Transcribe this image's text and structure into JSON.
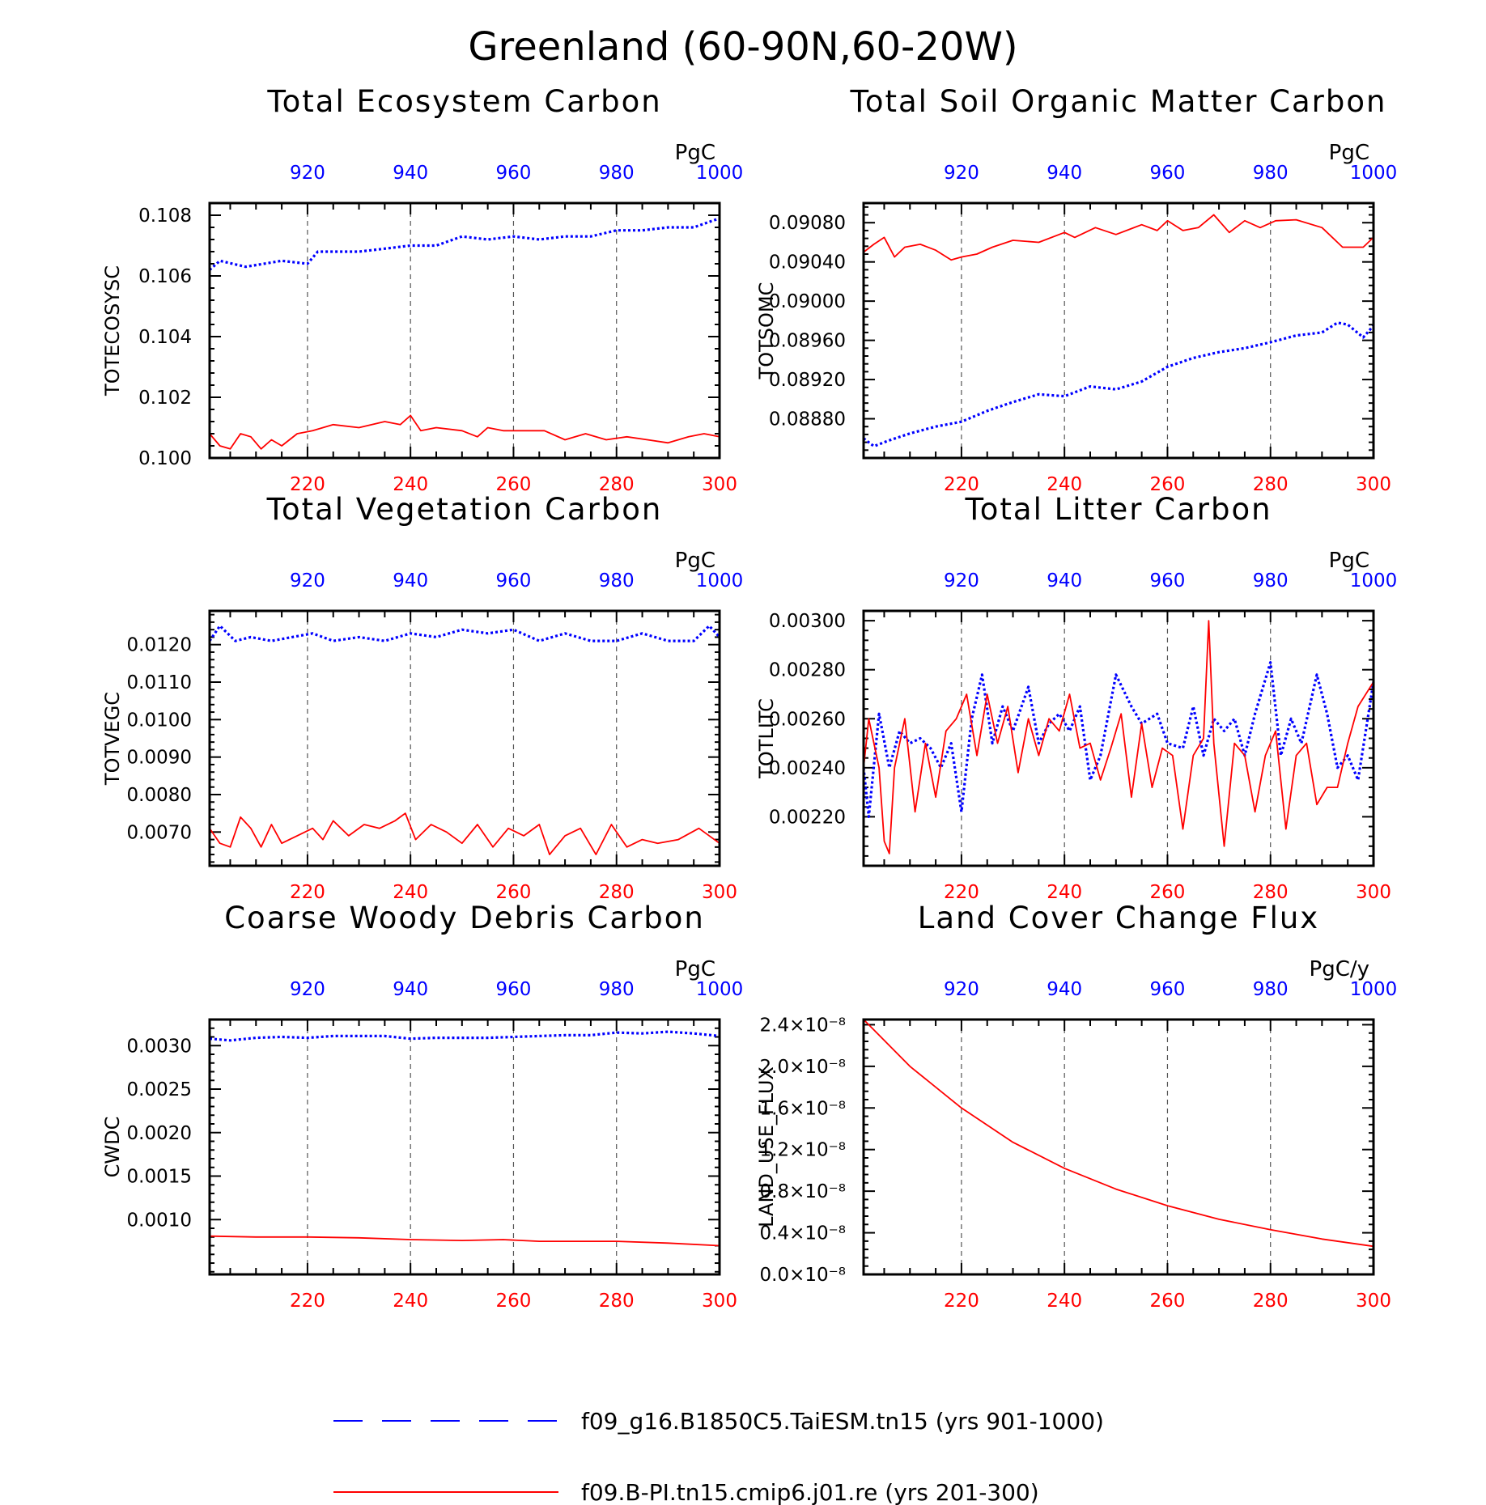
{
  "figure": {
    "title": "Greenland (60-90N,60-20W)"
  },
  "colors": {
    "series_a": "#0000ff",
    "series_b": "#ff0000",
    "axis": "#000000",
    "grid": "#555555"
  },
  "legend": [
    {
      "label": "f09_g16.B1850C5.TaiESM.tn15 (yrs 901-1000)",
      "color": "#0000ff",
      "style": "dashed"
    },
    {
      "label": "f09.B-PI.tn15.cmip6.j01.re (yrs 201-300)",
      "color": "#ff0000",
      "style": "solid"
    }
  ],
  "chart_data": [
    {
      "type": "line",
      "title": "Total Ecosystem Carbon",
      "ylabel": "TOTECOSYSC",
      "unit": "PgC",
      "ylim": [
        0.1,
        0.1084
      ],
      "yticks": [
        "0.100",
        "0.102",
        "0.104",
        "0.106",
        "0.108"
      ],
      "yticks_values": [
        0.1,
        0.102,
        0.104,
        0.106,
        0.108
      ],
      "bottom_axis": {
        "range": [
          201,
          300
        ],
        "ticks": [
          "220",
          "240",
          "260",
          "280",
          "300"
        ],
        "color": "#ff0000"
      },
      "top_axis": {
        "range": [
          901,
          1000
        ],
        "ticks": [
          "920",
          "940",
          "960",
          "980",
          "1000"
        ],
        "color": "#0000ff"
      },
      "series": [
        {
          "name": "f09_g16.B1850C5.TaiESM.tn15 (yrs 901-1000)",
          "style": "dashed",
          "color": "#0000ff",
          "x": [
            901,
            903,
            908,
            915,
            920,
            922,
            926,
            930,
            935,
            940,
            945,
            950,
            955,
            960,
            965,
            970,
            975,
            980,
            985,
            990,
            995,
            1000
          ],
          "y": [
            0.1062,
            0.1065,
            0.1063,
            0.1065,
            0.1064,
            0.1068,
            0.1068,
            0.1068,
            0.1069,
            0.107,
            0.107,
            0.1073,
            0.1072,
            0.1073,
            0.1072,
            0.1073,
            0.1073,
            0.1075,
            0.1075,
            0.1076,
            0.1076,
            0.1079
          ]
        },
        {
          "name": "f09.B-PI.tn15.cmip6.j01.re (yrs 201-300)",
          "style": "solid",
          "color": "#ff0000",
          "x": [
            201,
            203,
            205,
            207,
            209,
            211,
            213,
            215,
            218,
            221,
            225,
            230,
            235,
            238,
            240,
            242,
            245,
            250,
            253,
            255,
            258,
            262,
            266,
            270,
            274,
            278,
            282,
            286,
            290,
            294,
            297,
            300
          ],
          "y": [
            0.1008,
            0.1004,
            0.1003,
            0.1008,
            0.1007,
            0.1003,
            0.1006,
            0.1004,
            0.1008,
            0.1009,
            0.1011,
            0.101,
            0.1012,
            0.1011,
            0.1014,
            0.1009,
            0.101,
            0.1009,
            0.1007,
            0.101,
            0.1009,
            0.1009,
            0.1009,
            0.1006,
            0.1008,
            0.1006,
            0.1007,
            0.1006,
            0.1005,
            0.1007,
            0.1008,
            0.1007
          ]
        }
      ]
    },
    {
      "type": "line",
      "title": "Total Soil Organic Matter Carbon",
      "ylabel": "TOTSOMC",
      "unit": "PgC",
      "ylim": [
        0.0884,
        0.091
      ],
      "yticks": [
        "0.08880",
        "0.08920",
        "0.08960",
        "0.09000",
        "0.09040",
        "0.09080"
      ],
      "yticks_values": [
        0.0888,
        0.0892,
        0.0896,
        0.09,
        0.0904,
        0.0908
      ],
      "bottom_axis": {
        "range": [
          201,
          300
        ],
        "ticks": [
          "220",
          "240",
          "260",
          "280",
          "300"
        ],
        "color": "#ff0000"
      },
      "top_axis": {
        "range": [
          901,
          1000
        ],
        "ticks": [
          "920",
          "940",
          "960",
          "980",
          "1000"
        ],
        "color": "#0000ff"
      },
      "series": [
        {
          "name": "f09_g16.B1850C5.TaiESM.tn15 (yrs 901-1000)",
          "style": "dashed",
          "color": "#0000ff",
          "x": [
            901,
            903,
            906,
            910,
            915,
            920,
            925,
            930,
            935,
            940,
            945,
            950,
            955,
            960,
            965,
            970,
            975,
            980,
            985,
            990,
            993,
            995,
            998,
            1000
          ],
          "y": [
            0.0886,
            0.08852,
            0.08858,
            0.08865,
            0.08872,
            0.08877,
            0.08888,
            0.08897,
            0.08905,
            0.08903,
            0.08913,
            0.0891,
            0.08918,
            0.08933,
            0.08942,
            0.08948,
            0.08952,
            0.08958,
            0.08965,
            0.08968,
            0.08978,
            0.08976,
            0.08963,
            0.08975
          ]
        },
        {
          "name": "f09.B-PI.tn15.cmip6.j01.re (yrs 201-300)",
          "style": "solid",
          "color": "#ff0000",
          "x": [
            201,
            203,
            205,
            207,
            209,
            212,
            215,
            218,
            220,
            223,
            226,
            230,
            235,
            240,
            242,
            246,
            250,
            255,
            258,
            260,
            263,
            266,
            269,
            272,
            275,
            278,
            281,
            285,
            290,
            294,
            298,
            300
          ],
          "y": [
            0.0905,
            0.09058,
            0.09065,
            0.09045,
            0.09055,
            0.09058,
            0.09052,
            0.09042,
            0.09045,
            0.09048,
            0.09055,
            0.09062,
            0.0906,
            0.0907,
            0.09065,
            0.09075,
            0.09068,
            0.09078,
            0.09072,
            0.09082,
            0.09072,
            0.09075,
            0.09088,
            0.0907,
            0.09082,
            0.09075,
            0.09082,
            0.09083,
            0.09075,
            0.09055,
            0.09055,
            0.09065
          ]
        }
      ]
    },
    {
      "type": "line",
      "title": "Total Vegetation Carbon",
      "ylabel": "TOTVEGC",
      "unit": "PgC",
      "ylim": [
        0.0061,
        0.0129
      ],
      "yticks": [
        "0.0070",
        "0.0080",
        "0.0090",
        "0.0100",
        "0.0110",
        "0.0120"
      ],
      "yticks_values": [
        0.007,
        0.008,
        0.009,
        0.01,
        0.011,
        0.012
      ],
      "bottom_axis": {
        "range": [
          201,
          300
        ],
        "ticks": [
          "220",
          "240",
          "260",
          "280",
          "300"
        ],
        "color": "#ff0000"
      },
      "top_axis": {
        "range": [
          901,
          1000
        ],
        "ticks": [
          "920",
          "940",
          "960",
          "980",
          "1000"
        ],
        "color": "#0000ff"
      },
      "series": [
        {
          "name": "f09_g16.B1850C5.TaiESM.tn15 (yrs 901-1000)",
          "style": "dashed",
          "color": "#0000ff",
          "x": [
            901,
            903,
            906,
            909,
            913,
            917,
            921,
            925,
            930,
            935,
            940,
            945,
            950,
            955,
            960,
            965,
            970,
            975,
            980,
            985,
            990,
            995,
            998,
            1000
          ],
          "y": [
            0.0121,
            0.0125,
            0.0121,
            0.0122,
            0.0121,
            0.0122,
            0.0123,
            0.0121,
            0.0122,
            0.0121,
            0.0123,
            0.0122,
            0.0124,
            0.0123,
            0.0124,
            0.0121,
            0.0123,
            0.0121,
            0.0121,
            0.0123,
            0.0121,
            0.0121,
            0.0125,
            0.0122
          ]
        },
        {
          "name": "f09.B-PI.tn15.cmip6.j01.re (yrs 201-300)",
          "style": "solid",
          "color": "#ff0000",
          "x": [
            201,
            203,
            205,
            207,
            209,
            211,
            213,
            215,
            218,
            221,
            223,
            225,
            228,
            231,
            234,
            237,
            239,
            241,
            244,
            247,
            250,
            253,
            256,
            259,
            262,
            265,
            267,
            270,
            273,
            276,
            279,
            282,
            285,
            288,
            292,
            296,
            300
          ],
          "y": [
            0.0071,
            0.0067,
            0.0066,
            0.0074,
            0.0071,
            0.0066,
            0.0072,
            0.0067,
            0.0069,
            0.0071,
            0.0068,
            0.0073,
            0.0069,
            0.0072,
            0.0071,
            0.0073,
            0.0075,
            0.0068,
            0.0072,
            0.007,
            0.0067,
            0.0072,
            0.0066,
            0.0071,
            0.0069,
            0.0072,
            0.0064,
            0.0069,
            0.0071,
            0.0064,
            0.0072,
            0.0066,
            0.0068,
            0.0067,
            0.0068,
            0.0071,
            0.0067
          ]
        }
      ]
    },
    {
      "type": "line",
      "title": "Total Litter Carbon",
      "ylabel": "TOTLITC",
      "unit": "PgC",
      "ylim": [
        0.002,
        0.00304
      ],
      "yticks": [
        "0.00220",
        "0.00240",
        "0.00260",
        "0.00280",
        "0.00300"
      ],
      "yticks_values": [
        0.0022,
        0.0024,
        0.0026,
        0.0028,
        0.003
      ],
      "bottom_axis": {
        "range": [
          201,
          300
        ],
        "ticks": [
          "220",
          "240",
          "260",
          "280",
          "300"
        ],
        "color": "#ff0000"
      },
      "top_axis": {
        "range": [
          901,
          1000
        ],
        "ticks": [
          "920",
          "940",
          "960",
          "980",
          "1000"
        ],
        "color": "#0000ff"
      },
      "series": [
        {
          "name": "f09_g16.B1850C5.TaiESM.tn15 (yrs 901-1000)",
          "style": "dashed",
          "color": "#0000ff",
          "x": [
            901,
            902,
            904,
            906,
            908,
            910,
            912,
            914,
            916,
            918,
            920,
            922,
            924,
            926,
            928,
            930,
            933,
            935,
            937,
            939,
            941,
            943,
            945,
            947,
            950,
            953,
            955,
            958,
            960,
            963,
            965,
            967,
            969,
            971,
            973,
            975,
            977,
            980,
            982,
            984,
            986,
            989,
            991,
            993,
            995,
            997,
            1000
          ],
          "y": [
            0.0024,
            0.0022,
            0.00262,
            0.0024,
            0.00255,
            0.0025,
            0.00252,
            0.00248,
            0.0024,
            0.0025,
            0.00222,
            0.0026,
            0.00278,
            0.0025,
            0.00265,
            0.00255,
            0.00273,
            0.0025,
            0.00258,
            0.00262,
            0.00255,
            0.00265,
            0.00235,
            0.00245,
            0.00278,
            0.00265,
            0.00258,
            0.00262,
            0.0025,
            0.00248,
            0.00265,
            0.00245,
            0.0026,
            0.00255,
            0.0026,
            0.00245,
            0.00262,
            0.00283,
            0.00245,
            0.0026,
            0.0025,
            0.00278,
            0.00262,
            0.0024,
            0.00245,
            0.00235,
            0.00275
          ]
        },
        {
          "name": "f09.B-PI.tn15.cmip6.j01.re (yrs 201-300)",
          "style": "solid",
          "color": "#ff0000",
          "x": [
            201,
            202,
            204,
            205,
            206,
            207,
            209,
            211,
            213,
            215,
            217,
            219,
            221,
            223,
            225,
            227,
            229,
            231,
            233,
            235,
            237,
            239,
            241,
            243,
            245,
            247,
            249,
            251,
            253,
            255,
            257,
            259,
            261,
            263,
            265,
            267,
            268,
            269,
            271,
            273,
            275,
            277,
            279,
            281,
            283,
            285,
            287,
            289,
            291,
            293,
            295,
            297,
            300
          ],
          "y": [
            0.0024,
            0.0026,
            0.0024,
            0.0021,
            0.00205,
            0.0024,
            0.0026,
            0.00222,
            0.0025,
            0.00228,
            0.00255,
            0.0026,
            0.0027,
            0.00245,
            0.0027,
            0.0025,
            0.00265,
            0.00238,
            0.0026,
            0.00245,
            0.0026,
            0.00255,
            0.0027,
            0.00248,
            0.0025,
            0.00235,
            0.00248,
            0.00262,
            0.00228,
            0.00258,
            0.00232,
            0.00248,
            0.00245,
            0.00215,
            0.00245,
            0.00252,
            0.003,
            0.0025,
            0.00208,
            0.0025,
            0.00245,
            0.00222,
            0.00245,
            0.00255,
            0.00215,
            0.00245,
            0.0025,
            0.00225,
            0.00232,
            0.00232,
            0.0025,
            0.00265,
            0.00275
          ]
        }
      ]
    },
    {
      "type": "line",
      "title": "Coarse Woody Debris Carbon",
      "ylabel": "CWDC",
      "unit": "PgC",
      "ylim": [
        0.00037,
        0.0033
      ],
      "yticks": [
        "0.0010",
        "0.0015",
        "0.0020",
        "0.0025",
        "0.0030"
      ],
      "yticks_values": [
        0.001,
        0.0015,
        0.002,
        0.0025,
        0.003
      ],
      "bottom_axis": {
        "range": [
          201,
          300
        ],
        "ticks": [
          "220",
          "240",
          "260",
          "280",
          "300"
        ],
        "color": "#ff0000"
      },
      "top_axis": {
        "range": [
          901,
          1000
        ],
        "ticks": [
          "920",
          "940",
          "960",
          "980",
          "1000"
        ],
        "color": "#0000ff"
      },
      "series": [
        {
          "name": "f09_g16.B1850C5.TaiESM.tn15 (yrs 901-1000)",
          "style": "dashed",
          "color": "#0000ff",
          "x": [
            901,
            905,
            910,
            915,
            920,
            925,
            930,
            935,
            940,
            945,
            950,
            955,
            960,
            965,
            970,
            975,
            980,
            985,
            990,
            995,
            1000
          ],
          "y": [
            0.00308,
            0.00306,
            0.00309,
            0.0031,
            0.00309,
            0.00311,
            0.00311,
            0.00311,
            0.00308,
            0.00309,
            0.00309,
            0.00309,
            0.0031,
            0.00311,
            0.00312,
            0.00312,
            0.00315,
            0.00314,
            0.00316,
            0.00314,
            0.00311
          ]
        },
        {
          "name": "f09.B-PI.tn15.cmip6.j01.re (yrs 201-300)",
          "style": "solid",
          "color": "#ff0000",
          "x": [
            201,
            210,
            220,
            230,
            240,
            250,
            258,
            265,
            275,
            280,
            290,
            300
          ],
          "y": [
            0.00081,
            0.0008,
            0.0008,
            0.00079,
            0.00077,
            0.00076,
            0.00077,
            0.00075,
            0.00075,
            0.00075,
            0.00073,
            0.0007
          ]
        }
      ]
    },
    {
      "type": "line",
      "title": "Land Cover Change Flux",
      "ylabel": "LAND_USE_FLUX",
      "unit": "PgC/y",
      "ylim": [
        0,
        2.45e-08
      ],
      "yticks": [
        "0.0×10⁻⁸",
        "0.4×10⁻⁸",
        "0.8×10⁻⁸",
        "1.2×10⁻⁸",
        "1.6×10⁻⁸",
        "2.0×10⁻⁸",
        "2.4×10⁻⁸"
      ],
      "yticks_values": [
        0,
        4e-09,
        8e-09,
        1.2e-08,
        1.6e-08,
        2e-08,
        2.4e-08
      ],
      "bottom_axis": {
        "range": [
          201,
          300
        ],
        "ticks": [
          "220",
          "240",
          "260",
          "280",
          "300"
        ],
        "color": "#ff0000"
      },
      "top_axis": {
        "range": [
          901,
          1000
        ],
        "ticks": [
          "920",
          "940",
          "960",
          "980",
          "1000"
        ],
        "color": "#0000ff"
      },
      "series": [
        {
          "name": "f09.B-PI.tn15.cmip6.j01.re (yrs 201-300)",
          "style": "solid",
          "color": "#ff0000",
          "x": [
            201,
            210,
            220,
            230,
            240,
            250,
            260,
            270,
            280,
            290,
            300
          ],
          "y": [
            2.45e-08,
            2e-08,
            1.6e-08,
            1.27e-08,
            1.02e-08,
            8.2e-09,
            6.6e-09,
            5.3e-09,
            4.3e-09,
            3.4e-09,
            2.7e-09
          ]
        }
      ]
    }
  ]
}
